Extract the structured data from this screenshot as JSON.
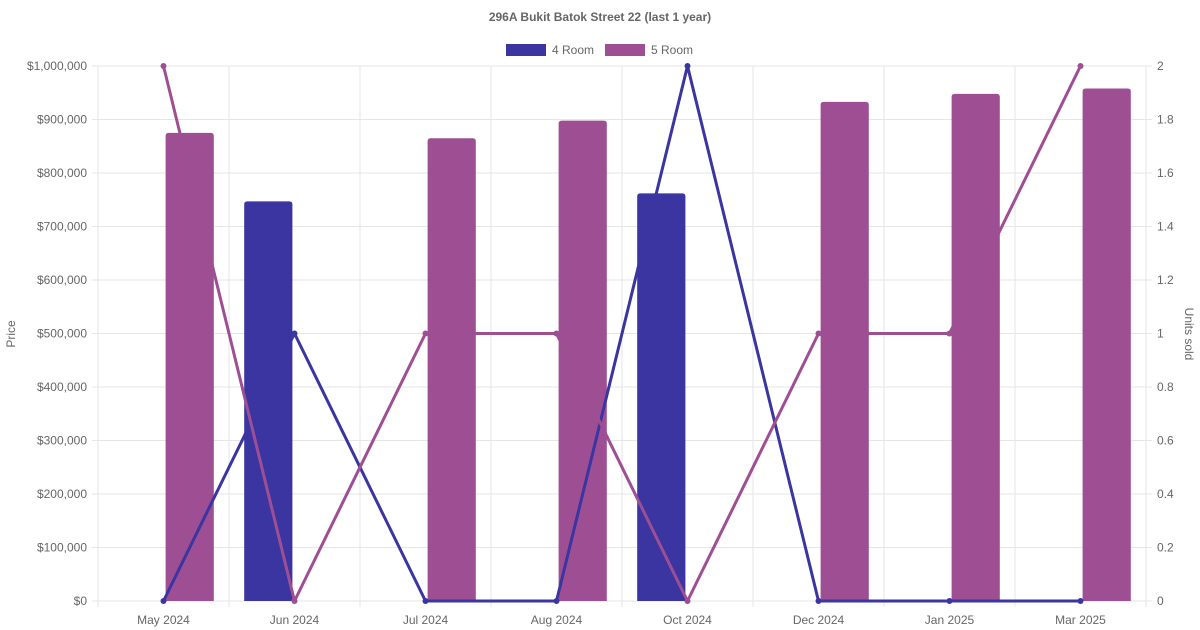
{
  "colors": {
    "series_4room": "#3a35a1",
    "series_5room": "#9e4f94",
    "grid": "#e6e6e6",
    "text": "#666666"
  },
  "chart_data": {
    "type": "bar",
    "title": "296A Bukit Batok Street 22 (last 1 year)",
    "categories": [
      "May 2024",
      "Jun 2024",
      "Jul 2024",
      "Aug 2024",
      "Oct 2024",
      "Dec 2024",
      "Jan 2025",
      "Mar 2025"
    ],
    "y_left": {
      "label": "Price",
      "range": [
        0,
        1000000
      ],
      "ticks": [
        "$0",
        "$100,000",
        "$200,000",
        "$300,000",
        "$400,000",
        "$500,000",
        "$600,000",
        "$700,000",
        "$800,000",
        "$900,000",
        "$1,000,000"
      ]
    },
    "y_right": {
      "label": "Units sold",
      "range": [
        0,
        2
      ],
      "ticks": [
        "0",
        "0.2",
        "0.4",
        "0.6",
        "0.8",
        "1",
        "1.2",
        "1.4",
        "1.6",
        "1.8",
        "2"
      ]
    },
    "legend": {
      "position": "top",
      "entries": [
        "4 Room",
        "5 Room"
      ]
    },
    "grid": true,
    "series": [
      {
        "name": "4 Room",
        "kind": "bar",
        "axis": "left",
        "values": [
          null,
          747000,
          null,
          null,
          762000,
          null,
          null,
          null
        ]
      },
      {
        "name": "5 Room",
        "kind": "bar",
        "axis": "left",
        "values": [
          875000,
          null,
          865000,
          898000,
          null,
          933000,
          948000,
          958000
        ]
      },
      {
        "name": "4 Room",
        "kind": "line",
        "axis": "right",
        "values": [
          0,
          1,
          0,
          0,
          2,
          0,
          0,
          0
        ]
      },
      {
        "name": "5 Room",
        "kind": "line",
        "axis": "right",
        "values": [
          2,
          0,
          1,
          1,
          0,
          1,
          1,
          2
        ]
      }
    ]
  }
}
